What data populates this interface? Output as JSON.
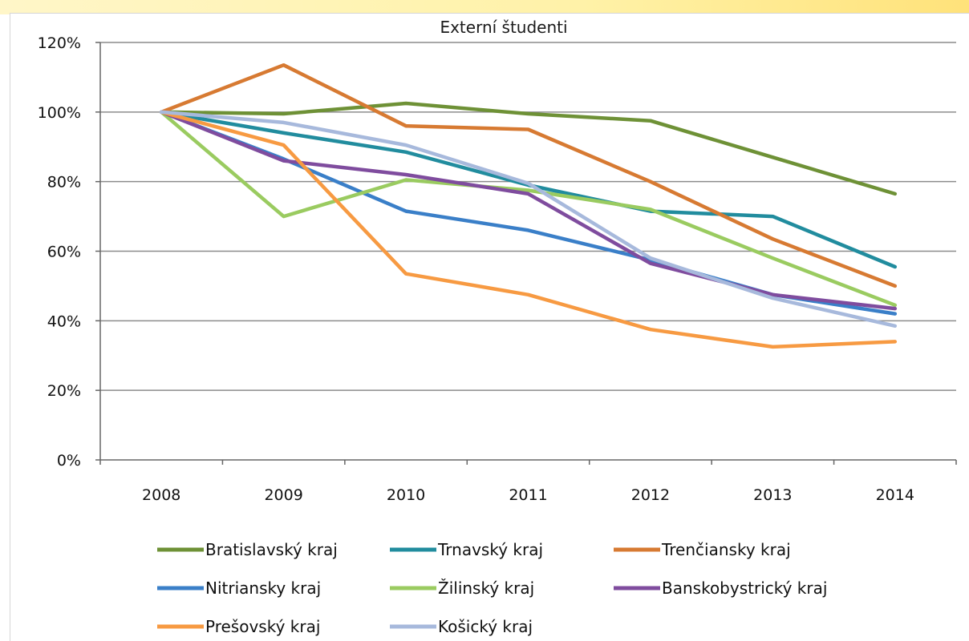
{
  "chart_data": {
    "type": "line",
    "title": "Externí študenti",
    "xlabel": "",
    "ylabel": "",
    "x": [
      "2008",
      "2009",
      "2010",
      "2011",
      "2012",
      "2013",
      "2014"
    ],
    "y_ticks": [
      "0%",
      "20%",
      "40%",
      "60%",
      "80%",
      "100%",
      "120%"
    ],
    "ylim": [
      0,
      120
    ],
    "y_unit": "%",
    "grid": "horizontal",
    "legend_position": "bottom",
    "series": [
      {
        "name": "Bratislavský kraj",
        "color": "#6e9136",
        "values": [
          100,
          99.5,
          102.5,
          99.5,
          97.5,
          87,
          76.5
        ]
      },
      {
        "name": "Trnavský kraj",
        "color": "#218c9e",
        "values": [
          100,
          94,
          88.5,
          79,
          71.5,
          70,
          55.5
        ]
      },
      {
        "name": "Trenčiansky kraj",
        "color": "#d77a32",
        "values": [
          100,
          113.5,
          96,
          95,
          80,
          63.5,
          50
        ]
      },
      {
        "name": "Nitriansky kraj",
        "color": "#3a7fc8",
        "values": [
          100,
          86.5,
          71.5,
          66,
          57.5,
          47.5,
          42
        ]
      },
      {
        "name": "Žilinský kraj",
        "color": "#9acb60",
        "values": [
          100,
          70,
          80.5,
          77.5,
          72,
          58,
          44.5
        ]
      },
      {
        "name": "Banskobystrický kraj",
        "color": "#7f4c9e",
        "values": [
          100,
          86,
          82,
          76.5,
          56.5,
          47.5,
          43.5
        ]
      },
      {
        "name": "Prešovský kraj",
        "color": "#f79a42",
        "values": [
          100,
          90.5,
          53.5,
          47.5,
          37.5,
          32.5,
          34
        ]
      },
      {
        "name": "Košický kraj",
        "color": "#a7b9dc",
        "values": [
          100,
          97,
          90.5,
          79.5,
          58,
          46.5,
          38.5
        ]
      }
    ]
  }
}
